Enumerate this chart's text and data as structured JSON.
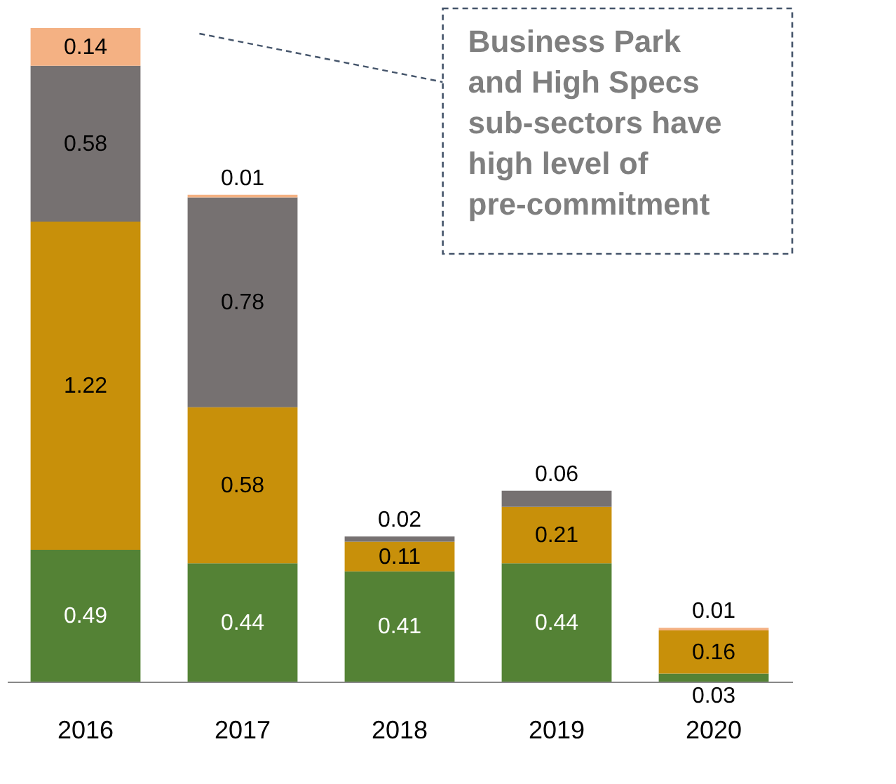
{
  "chart_data": {
    "type": "bar",
    "stacked": true,
    "data_labels": true,
    "grid": false,
    "legend": false,
    "tick_labels": "x",
    "categories": [
      "2016",
      "2017",
      "2018",
      "2019",
      "2020"
    ],
    "series": [
      {
        "color": "#548235",
        "values": [
          0.49,
          0.44,
          0.41,
          0.44,
          0.03
        ]
      },
      {
        "color": "#c8900a",
        "values": [
          1.22,
          0.58,
          0.11,
          0.21,
          0.16
        ]
      },
      {
        "color": "#767171",
        "values": [
          0.58,
          0.78,
          0.02,
          0.06,
          null
        ]
      },
      {
        "color": "#f4b183",
        "values": [
          0.14,
          0.01,
          null,
          null,
          0.01
        ]
      }
    ],
    "annotations": [
      "Business Park and High Specs sub-sectors have high level of pre-commitment"
    ]
  }
}
